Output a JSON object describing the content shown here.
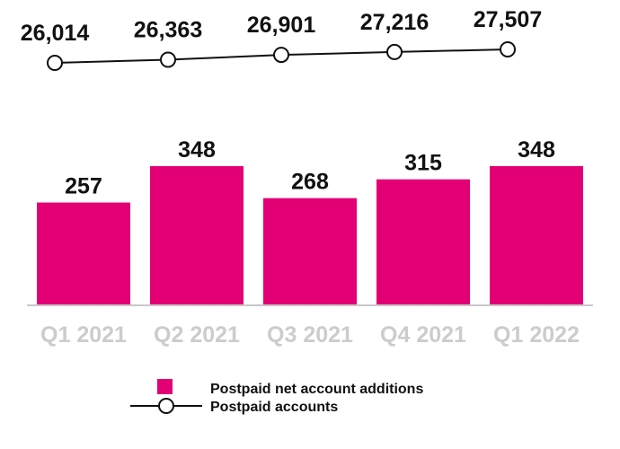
{
  "chart_data": {
    "type": "bar",
    "categories": [
      "Q1 2021",
      "Q2 2021",
      "Q3 2021",
      "Q4 2021",
      "Q1 2022"
    ],
    "series": [
      {
        "name": "Postpaid net account additions",
        "type": "bar",
        "values": [
          257,
          348,
          268,
          315,
          348
        ],
        "data_labels": [
          "257",
          "348",
          "268",
          "315",
          "348"
        ]
      },
      {
        "name": "Postpaid accounts",
        "type": "line",
        "values": [
          26014,
          26363,
          26901,
          27216,
          27507
        ],
        "data_labels": [
          "26,014",
          "26,363",
          "26,901",
          "27,216",
          "27,507"
        ]
      }
    ],
    "title": "",
    "xlabel": "",
    "ylabel": "",
    "ylim": [
      0,
      350
    ],
    "grid": false,
    "legend_position": "bottom"
  },
  "colors": {
    "bar": "#e20074",
    "line": "#111111",
    "marker_fill": "#ffffff",
    "category_text": "#cccccc",
    "baseline": "#c8c8c8"
  }
}
